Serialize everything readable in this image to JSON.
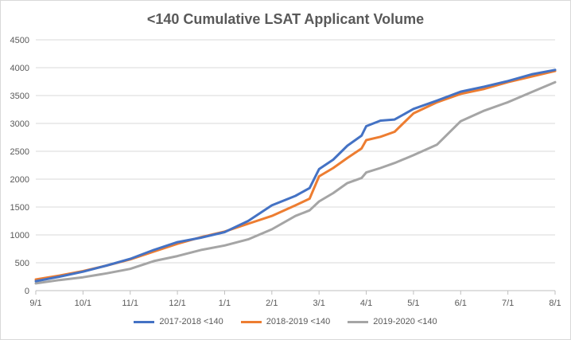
{
  "chart_data": {
    "type": "line",
    "title": "<140 Cumulative LSAT Applicant Volume",
    "xlabel": "",
    "ylabel": "",
    "ylim": [
      0,
      4500
    ],
    "yticks": [
      "0",
      "500",
      "1000",
      "1500",
      "2000",
      "2500",
      "3000",
      "3500",
      "4000",
      "4500"
    ],
    "ytick_values": [
      0,
      500,
      1000,
      1500,
      2000,
      2500,
      3000,
      3500,
      4000,
      4500
    ],
    "xlim": [
      0,
      11
    ],
    "xticks": [
      "9/1",
      "10/1",
      "11/1",
      "12/1",
      "1/1",
      "2/1",
      "3/1",
      "4/1",
      "5/1",
      "6/1",
      "7/1",
      "8/1"
    ],
    "xtick_values": [
      0,
      1,
      2,
      3,
      4,
      5,
      6,
      7,
      8,
      9,
      10,
      11
    ],
    "grid": true,
    "legend_position": "bottom",
    "series": [
      {
        "name": "2017-2018 <140",
        "color": "#4472c4",
        "x": [
          0,
          0.5,
          1,
          1.5,
          2,
          2.5,
          3,
          3.5,
          4,
          4.5,
          5,
          5.5,
          5.8,
          6,
          6.3,
          6.6,
          6.9,
          7,
          7.3,
          7.6,
          8,
          8.5,
          9,
          9.5,
          10,
          10.5,
          11
        ],
        "values": [
          170,
          250,
          340,
          450,
          570,
          730,
          870,
          950,
          1050,
          1250,
          1530,
          1700,
          1840,
          2180,
          2350,
          2600,
          2780,
          2950,
          3050,
          3070,
          3260,
          3410,
          3570,
          3660,
          3760,
          3880,
          3960
        ]
      },
      {
        "name": "2018-2019 <140",
        "color": "#ed7d31",
        "x": [
          0,
          0.5,
          1,
          1.5,
          2,
          2.5,
          3,
          3.5,
          4,
          4.5,
          5,
          5.5,
          5.8,
          6,
          6.3,
          6.6,
          6.9,
          7,
          7.3,
          7.6,
          8,
          8.5,
          9,
          9.5,
          10,
          10.5,
          11
        ],
        "values": [
          200,
          270,
          350,
          450,
          560,
          700,
          840,
          960,
          1060,
          1200,
          1340,
          1530,
          1650,
          2050,
          2200,
          2380,
          2550,
          2700,
          2760,
          2850,
          3180,
          3380,
          3530,
          3620,
          3740,
          3840,
          3940
        ]
      },
      {
        "name": "2019-2020 <140",
        "color": "#a5a5a5",
        "x": [
          0,
          0.5,
          1,
          1.5,
          2,
          2.5,
          3,
          3.5,
          4,
          4.5,
          5,
          5.5,
          5.8,
          6,
          6.3,
          6.6,
          6.9,
          7,
          7.3,
          7.6,
          8,
          8.5,
          9,
          9.5,
          10,
          10.5,
          11
        ],
        "values": [
          130,
          190,
          240,
          310,
          390,
          530,
          620,
          730,
          810,
          920,
          1100,
          1340,
          1440,
          1600,
          1750,
          1930,
          2020,
          2120,
          2200,
          2290,
          2430,
          2620,
          3040,
          3230,
          3380,
          3560,
          3740
        ]
      }
    ]
  }
}
